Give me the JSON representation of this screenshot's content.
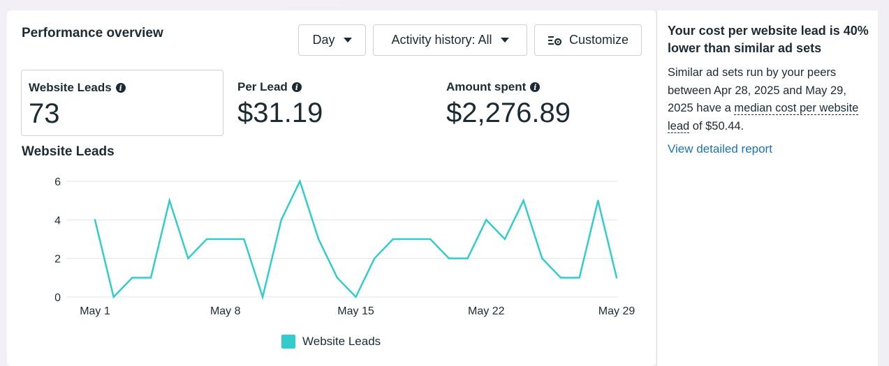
{
  "panel": {
    "title": "Performance overview",
    "buttons": {
      "day": "Day",
      "activity": "Activity history: All",
      "customize": "Customize"
    }
  },
  "metrics": [
    {
      "label": "Website Leads",
      "value": "73"
    },
    {
      "label": "Per Lead",
      "value": "$31.19"
    },
    {
      "label": "Amount spent",
      "value": "$2,276.89"
    }
  ],
  "chart_data": {
    "type": "line",
    "title": "Website Leads",
    "x": [
      "May 1",
      "May 2",
      "May 3",
      "May 4",
      "May 5",
      "May 6",
      "May 7",
      "May 8",
      "May 9",
      "May 10",
      "May 11",
      "May 12",
      "May 13",
      "May 14",
      "May 15",
      "May 16",
      "May 17",
      "May 18",
      "May 19",
      "May 20",
      "May 21",
      "May 22",
      "May 23",
      "May 24",
      "May 25",
      "May 26",
      "May 27",
      "May 28",
      "May 29"
    ],
    "x_ticks": [
      "May 1",
      "May 8",
      "May 15",
      "May 22",
      "May 29"
    ],
    "y_ticks": [
      0,
      2,
      4,
      6
    ],
    "ylim": [
      0,
      6
    ],
    "series": [
      {
        "name": "Website Leads",
        "color": "#33cccc",
        "values": [
          4,
          0,
          1,
          1,
          5,
          2,
          3,
          3,
          3,
          0,
          4,
          6,
          3,
          1,
          0,
          2,
          3,
          3,
          3,
          2,
          2,
          4,
          3,
          5,
          2,
          1,
          1,
          5,
          1
        ]
      }
    ],
    "grid": true,
    "legend_position": "bottom-center"
  },
  "side": {
    "title": "Your cost per website lead is 40% lower than similar ad sets",
    "body_prefix": "Similar ad sets run by your peers between Apr 28, 2025 and May 29, 2025 have a ",
    "body_term": "median cost per website lead",
    "body_suffix": " of $50.44.",
    "link": "View detailed report"
  },
  "colors": {
    "series": "#33cccc",
    "link": "#1a73b5",
    "text": "#1c2b33"
  }
}
